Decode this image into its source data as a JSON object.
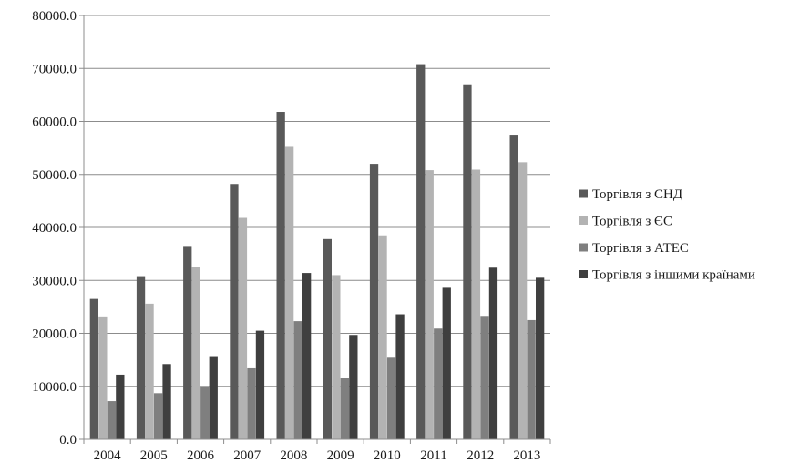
{
  "chart_data": {
    "type": "bar",
    "title": "",
    "xlabel": "",
    "ylabel": "",
    "categories": [
      "2004",
      "2005",
      "2006",
      "2007",
      "2008",
      "2009",
      "2010",
      "2011",
      "2012",
      "2013"
    ],
    "series": [
      {
        "name": "Торгівля з СНД",
        "color": "#595959",
        "values": [
          26500,
          30800,
          36500,
          48200,
          61800,
          37800,
          52000,
          70800,
          67000,
          57500
        ]
      },
      {
        "name": "Торгівля з ЄС",
        "color": "#b3b3b3",
        "values": [
          23200,
          25600,
          32500,
          41800,
          55200,
          31000,
          38500,
          50800,
          50900,
          52300
        ]
      },
      {
        "name": "Торгівля з АТЕС",
        "color": "#7f7f7f",
        "values": [
          7200,
          8700,
          9800,
          13400,
          22300,
          11500,
          15400,
          20900,
          23300,
          22500
        ]
      },
      {
        "name": "Торгівля з іншими країнами",
        "color": "#3f3f3f",
        "values": [
          12200,
          14200,
          15700,
          20500,
          31400,
          19700,
          23600,
          28600,
          32400,
          30500
        ]
      }
    ],
    "ylim": [
      0,
      80000
    ],
    "yticks": [
      "0.0",
      "10000.0",
      "20000.0",
      "30000.0",
      "40000.0",
      "50000.0",
      "60000.0",
      "70000.0",
      "80000.0"
    ],
    "grid": true,
    "legend_position": "right"
  }
}
